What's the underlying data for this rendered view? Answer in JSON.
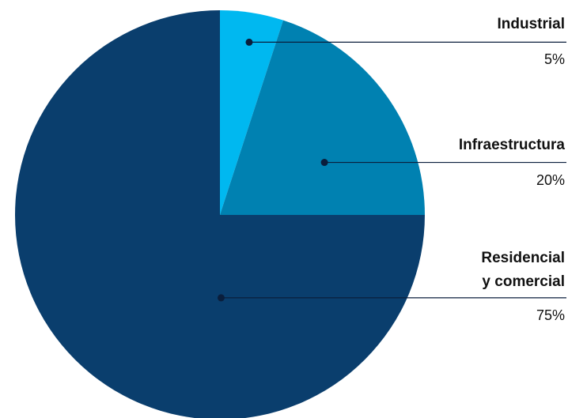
{
  "chart_data": {
    "type": "pie",
    "title": "",
    "slices": [
      {
        "label": "Industrial",
        "label_lines": [
          "Industrial"
        ],
        "value": 5,
        "value_label": "5%",
        "color": "#00b8f0"
      },
      {
        "label": "Infraestructura",
        "label_lines": [
          "Infraestructura"
        ],
        "value": 20,
        "value_label": "20%",
        "color": "#0081b1"
      },
      {
        "label": "Residencial y comercial",
        "label_lines": [
          "Residencial",
          "y comercial"
        ],
        "value": 75,
        "value_label": "75%",
        "color": "#0a3e6d"
      }
    ],
    "start_angle": "12 o'clock",
    "direction": "clockwise",
    "legend": "none",
    "labels_position": "right"
  }
}
